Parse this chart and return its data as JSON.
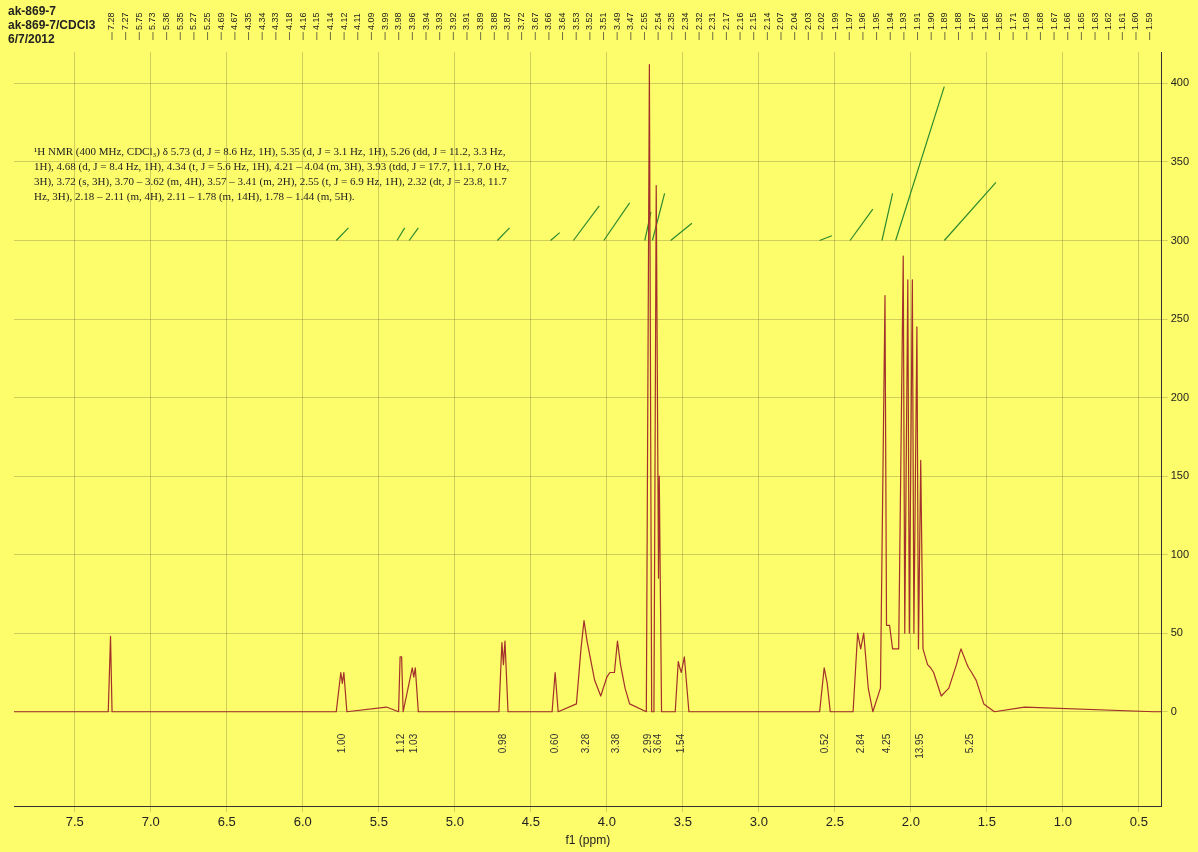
{
  "chart_data": {
    "type": "line",
    "xlabel": "f1 (ppm)",
    "xlim": [
      7.9,
      0.35
    ],
    "xticks": [
      {
        "value": 7.5,
        "label": "7.5"
      },
      {
        "value": 7,
        "label": "7.0"
      },
      {
        "value": 6.5,
        "label": "6.5"
      },
      {
        "value": 6,
        "label": "6.0"
      },
      {
        "value": 5.5,
        "label": "5.5"
      },
      {
        "value": 5,
        "label": "5.0"
      },
      {
        "value": 4.5,
        "label": "4.5"
      },
      {
        "value": 4,
        "label": "4.0"
      },
      {
        "value": 3.5,
        "label": "3.5"
      },
      {
        "value": 3,
        "label": "3.0"
      },
      {
        "value": 2.5,
        "label": "2.5"
      },
      {
        "value": 2,
        "label": "2.0"
      },
      {
        "value": 1.5,
        "label": "1.5"
      },
      {
        "value": 1,
        "label": "1.0"
      },
      {
        "value": 0.5,
        "label": "0.5"
      }
    ],
    "ylim": [
      -60,
      420
    ],
    "yticks": [
      0,
      50,
      100,
      150,
      200,
      250,
      300,
      350,
      400
    ],
    "grid": true,
    "marker": "none",
    "line_style": "solid",
    "series": [
      {
        "color": "#a3302a",
        "x": [
          7.9,
          7.28,
          7.265,
          7.255,
          5.78,
          5.75,
          5.74,
          5.73,
          5.71,
          5.45,
          5.37,
          5.36,
          5.35,
          5.34,
          5.28,
          5.27,
          5.26,
          5.24,
          4.71,
          4.69,
          4.68,
          4.67,
          4.65,
          4.36,
          4.34,
          4.32,
          4.2,
          4.17,
          4.15,
          4.13,
          4.11,
          4.08,
          4.04,
          4.0,
          3.98,
          3.95,
          3.93,
          3.91,
          3.88,
          3.85,
          3.74,
          3.72,
          3.705,
          3.69,
          3.675,
          3.66,
          3.655,
          3.64,
          3.55,
          3.53,
          3.52,
          3.51,
          3.49,
          3.46,
          2.6,
          2.57,
          2.55,
          2.53,
          2.38,
          2.35,
          2.33,
          2.31,
          2.28,
          2.25,
          2.2,
          2.17,
          2.16,
          2.14,
          2.12,
          2.1,
          2.08,
          2.05,
          2.04,
          2.02,
          2.01,
          1.99,
          1.98,
          1.96,
          1.95,
          1.935,
          1.92,
          1.89,
          1.87,
          1.85,
          1.8,
          1.75,
          1.7,
          1.68,
          1.67,
          1.63,
          1.62,
          1.6,
          1.57,
          1.52,
          1.45,
          1.25,
          0.4,
          0.35
        ],
        "values": [
          0,
          0,
          48,
          0,
          0,
          25,
          18,
          25,
          0,
          3,
          0,
          35,
          35,
          0,
          28,
          22,
          28,
          0,
          0,
          44,
          30,
          45,
          0,
          0,
          25,
          0,
          5,
          40,
          58,
          45,
          35,
          20,
          10,
          22,
          25,
          25,
          45,
          30,
          15,
          5,
          0,
          412,
          0,
          0,
          335,
          85,
          150,
          0,
          0,
          32,
          28,
          25,
          35,
          0,
          0,
          28,
          18,
          0,
          0,
          50,
          40,
          50,
          15,
          0,
          15,
          265,
          55,
          55,
          40,
          40,
          40,
          290,
          50,
          275,
          50,
          275,
          50,
          245,
          40,
          160,
          40,
          30,
          28,
          25,
          10,
          15,
          30,
          37,
          40,
          30,
          28,
          25,
          20,
          5,
          0,
          3,
          0,
          0
        ]
      },
      {
        "color": "#2e8b2e",
        "x": [
          5.78,
          5.7,
          null,
          5.38,
          5.33,
          null,
          5.3,
          5.24,
          null,
          4.72,
          4.64,
          null,
          4.37,
          4.31,
          null,
          4.22,
          4.05,
          null,
          4.02,
          3.85,
          null,
          3.75,
          3.71,
          null,
          3.7,
          3.62,
          null,
          3.58,
          3.44,
          null,
          2.6,
          2.52,
          null,
          2.4,
          2.25,
          null,
          2.19,
          2.12,
          null,
          2.1,
          1.78,
          null,
          1.78,
          1.44
        ],
        "values": [
          300,
          308,
          null,
          300,
          308,
          null,
          300,
          308,
          null,
          300,
          308,
          null,
          300,
          305,
          null,
          300,
          322,
          null,
          300,
          324,
          null,
          300,
          318,
          null,
          300,
          330,
          null,
          300,
          311,
          null,
          300,
          303,
          null,
          300,
          320,
          null,
          300,
          330,
          null,
          300,
          398,
          null,
          300,
          337
        ]
      }
    ],
    "annotations": [
      "ak-869-7",
      "ak-869-7/CDCl3",
      "6/7/2012",
      "¹H NMR (400 MHz, CDCl₃) δ 5.73 (d, J = 8.6 Hz, 1H), 5.35 (d, J = 3.1 Hz, 1H), 5.26 (dd, J = 11.2, 3.3 Hz, 1H), 4.68 (d, J = 8.4 Hz, 1H), 4.34 (t, J = 5.6 Hz, 1H), 4.21 – 4.04 (m, 3H), 3.93 (tdd, J = 17.7, 11.1, 7.0 Hz, 3H), 3.72 (s, 3H), 3.70 – 3.62 (m, 4H), 3.57 – 3.41 (m, 2H), 2.55 (t, J = 6.9 Hz, 1H), 2.32 (dt, J = 23.8, 11.7 Hz, 3H), 2.18 – 2.11 (m, 4H), 2.11 – 1.78 (m, 14H), 1.78 – 1.44 (m, 5H).",
      "1.00",
      "1.12",
      "1.03",
      "0.98",
      "0.60",
      "3.28",
      "3.38",
      "2.99",
      "3.64",
      "1.54",
      "0.52",
      "2.84",
      "4.25",
      "13.95",
      "5.25",
      "7.28",
      "7.27",
      "5.75",
      "5.73",
      "5.36",
      "5.35",
      "5.27",
      "5.25",
      "4.69",
      "4.67",
      "4.35",
      "4.34",
      "4.33",
      "4.18",
      "4.16",
      "4.15",
      "4.14",
      "4.12",
      "4.11",
      "4.09",
      "3.99",
      "3.98",
      "3.96",
      "3.94",
      "3.93",
      "3.92",
      "3.91",
      "3.89",
      "3.88",
      "3.87",
      "3.72",
      "3.67",
      "3.66",
      "3.64",
      "3.53",
      "3.52",
      "3.51",
      "3.49",
      "3.47",
      "2.55",
      "2.54",
      "2.35",
      "2.34",
      "2.32",
      "2.31",
      "2.17",
      "2.16",
      "2.15",
      "2.14",
      "2.07",
      "2.04",
      "2.03",
      "2.02",
      "1.99",
      "1.97",
      "1.96",
      "1.95",
      "1.94",
      "1.93",
      "1.91",
      "1.90",
      "1.89",
      "1.88",
      "1.87",
      "1.86",
      "1.85",
      "1.71",
      "1.69",
      "1.68",
      "1.67",
      "1.66",
      "1.65",
      "1.63",
      "1.62",
      "1.61",
      "1.60",
      "1.59"
    ]
  }
}
